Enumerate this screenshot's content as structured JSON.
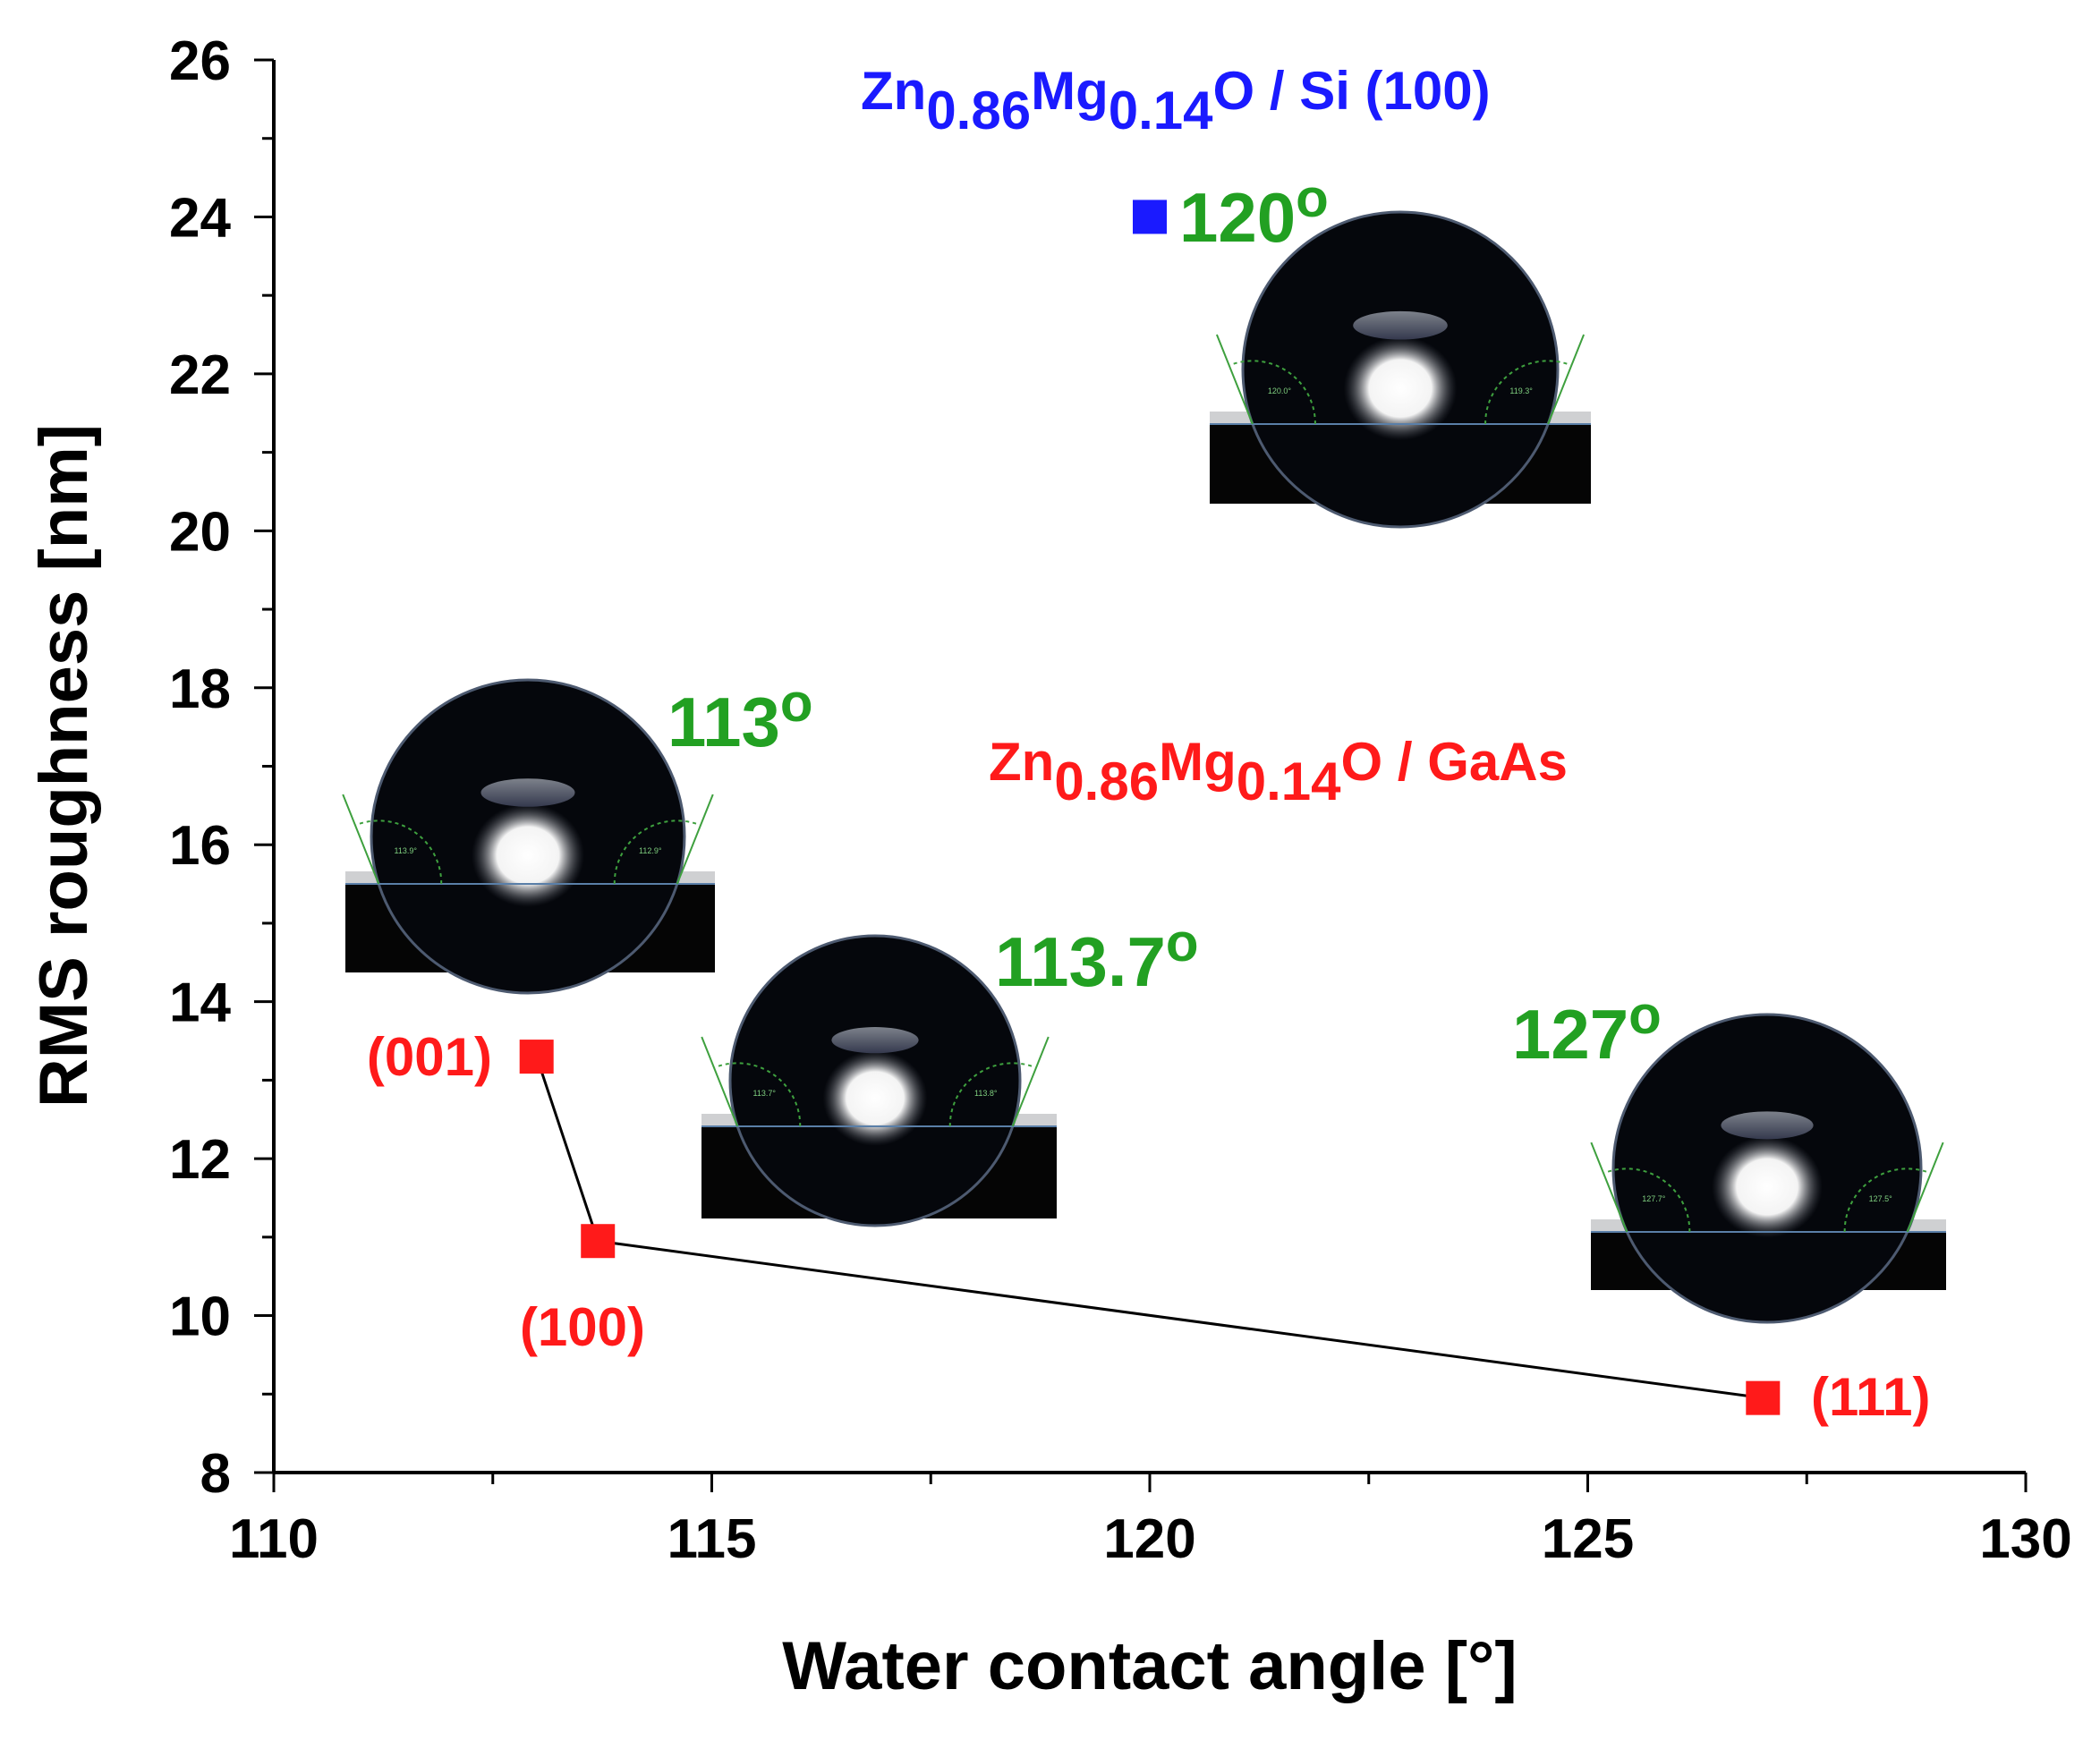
{
  "chart_data": {
    "type": "scatter",
    "xlabel": "Water contact angle [°]",
    "ylabel": "RMS roughness [nm]",
    "xlim": [
      110,
      130
    ],
    "ylim": [
      8,
      26
    ],
    "x_ticks": [
      110,
      115,
      120,
      125,
      130
    ],
    "y_ticks": [
      8,
      10,
      12,
      14,
      16,
      18,
      20,
      22,
      24,
      26
    ],
    "grid": false,
    "series": [
      {
        "name": "Zn0.86Mg0.14O / GaAs",
        "name_parts": [
          "Zn",
          "0.86",
          "Mg",
          "0.14",
          "O / GaAs"
        ],
        "color": "#ff1a1a",
        "marker": "square",
        "connected": true,
        "points": [
          {
            "x": 113,
            "y": 13.3,
            "label": "(001)"
          },
          {
            "x": 113.7,
            "y": 10.95,
            "label": "(100)"
          },
          {
            "x": 127,
            "y": 8.95,
            "label": "(111)"
          }
        ]
      },
      {
        "name": "Zn0.86Mg0.14O / Si (100)",
        "name_parts": [
          "Zn",
          "0.86",
          "Mg",
          "0.14",
          "O / Si (100)"
        ],
        "color": "#1a1aff",
        "marker": "square",
        "connected": false,
        "points": [
          {
            "x": 120,
            "y": 24
          }
        ]
      }
    ],
    "annotations": [
      {
        "text": "120",
        "unit": "o",
        "color": "#22a022"
      },
      {
        "text": "113",
        "unit": "o",
        "color": "#22a022"
      },
      {
        "text": "113.7",
        "unit": "o",
        "color": "#22a022"
      },
      {
        "text": "127",
        "unit": "o",
        "color": "#22a022"
      }
    ],
    "droplet_images": [
      {
        "left_angle": "120.0°",
        "right_angle": "119.3°"
      },
      {
        "left_angle": "113.9°",
        "right_angle": "112.9°"
      },
      {
        "left_angle": "113.7°",
        "right_angle": "113.8°"
      },
      {
        "left_angle": "127.7°",
        "right_angle": "127.5°"
      }
    ]
  }
}
